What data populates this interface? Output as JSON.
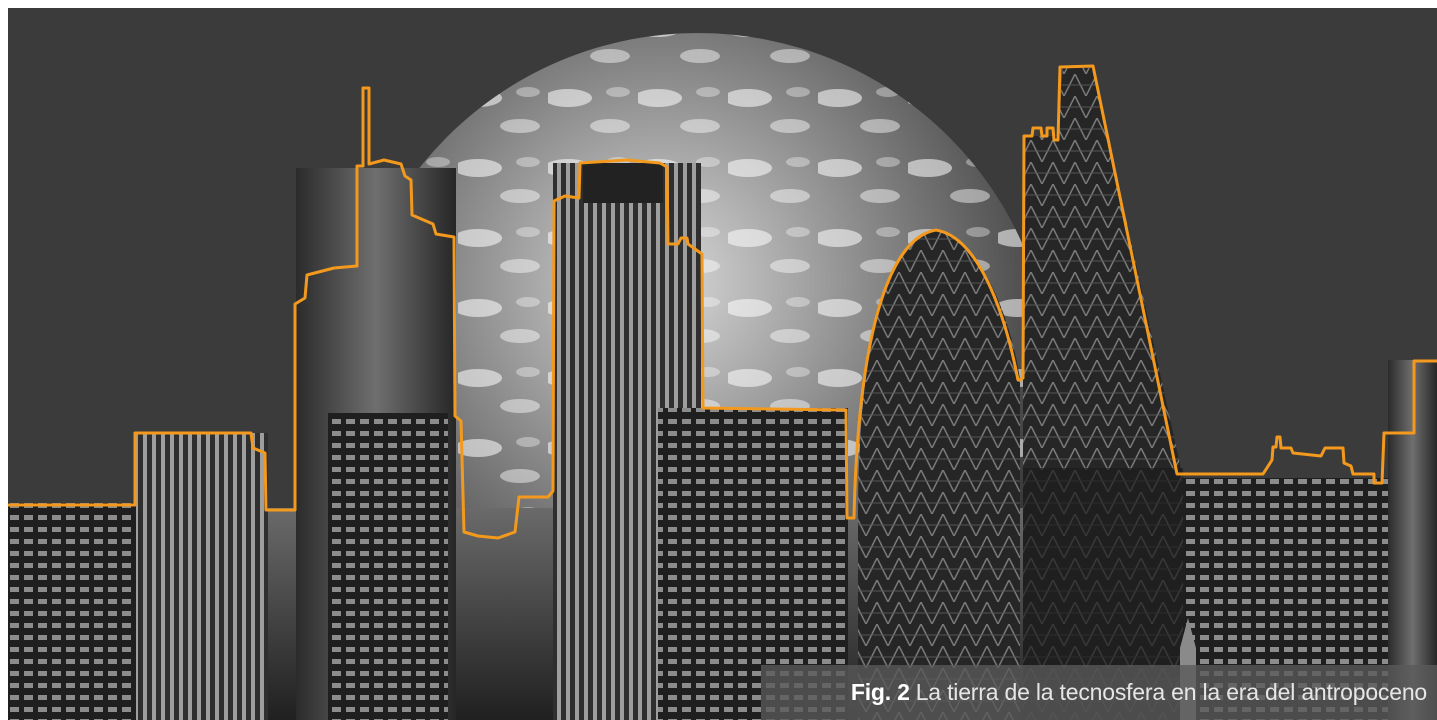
{
  "caption": {
    "label": "Fig. 2",
    "text": "La tierra de la tecnosfera en la era del antropoceno"
  },
  "colors": {
    "background": "#3b3b3b",
    "outline": "#f39a1e",
    "caption_bar": "#5a5a5a"
  }
}
